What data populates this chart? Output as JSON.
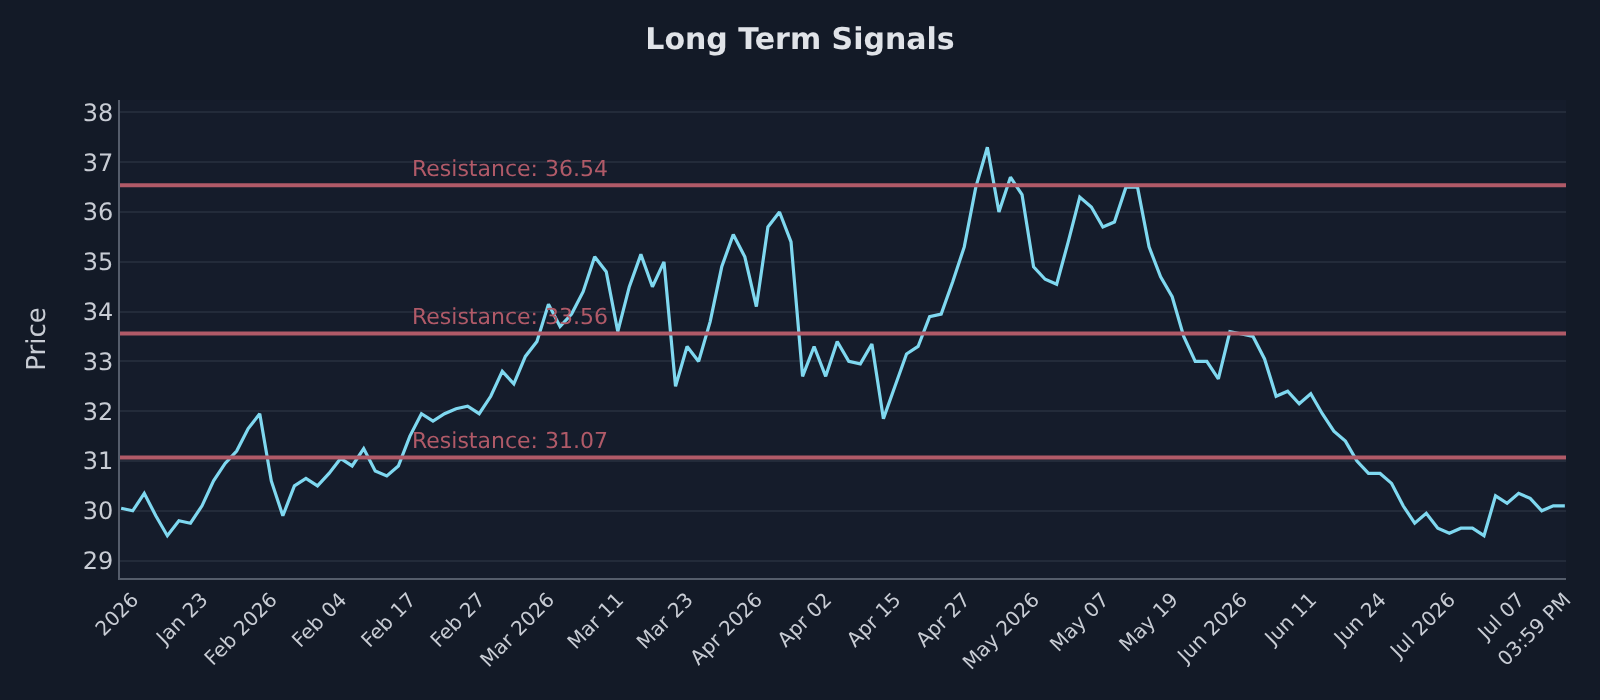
{
  "chart_data": {
    "type": "line",
    "title": "Long Term Signals",
    "ylabel": "Price",
    "categories": [
      null,
      "2026",
      null,
      null,
      null,
      null,
      null,
      "Jan 23",
      null,
      null,
      null,
      null,
      null,
      "Feb 2026",
      null,
      null,
      null,
      null,
      null,
      "Feb 04",
      null,
      null,
      null,
      null,
      null,
      "Feb 17",
      null,
      null,
      null,
      null,
      null,
      "Feb 27",
      null,
      null,
      null,
      null,
      null,
      "Mar 2026",
      null,
      null,
      null,
      null,
      null,
      "Mar 11",
      null,
      null,
      null,
      null,
      null,
      "Mar 23",
      null,
      null,
      null,
      null,
      null,
      "Apr 2026",
      null,
      null,
      null,
      null,
      null,
      "Apr 02",
      null,
      null,
      null,
      null,
      null,
      "Apr 15",
      null,
      null,
      null,
      null,
      null,
      "Apr 27",
      null,
      null,
      null,
      null,
      null,
      "May 2026",
      null,
      null,
      null,
      null,
      null,
      "May 07",
      null,
      null,
      null,
      null,
      null,
      "May 19",
      null,
      null,
      null,
      null,
      null,
      "Jun 2026",
      null,
      null,
      null,
      null,
      null,
      "Jun 11",
      null,
      null,
      null,
      null,
      null,
      "Jun 24",
      null,
      null,
      null,
      null,
      null,
      "Jul 2026",
      null,
      null,
      null,
      null,
      null,
      "Jul 07",
      null,
      null,
      null,
      "03:59 PM"
    ],
    "series": [
      {
        "color": "#7fd8f0",
        "values": [
          30.05,
          30.0,
          30.35,
          29.9,
          29.5,
          29.8,
          29.75,
          30.1,
          30.6,
          30.95,
          31.2,
          31.65,
          31.95,
          30.6,
          29.9,
          30.5,
          30.65,
          30.5,
          30.75,
          31.05,
          30.9,
          31.25,
          30.8,
          30.7,
          30.9,
          31.5,
          31.95,
          31.8,
          31.95,
          32.05,
          32.1,
          31.95,
          32.3,
          32.8,
          32.55,
          33.1,
          33.4,
          34.15,
          33.7,
          33.95,
          34.4,
          35.1,
          34.8,
          33.6,
          34.5,
          35.15,
          34.5,
          35.0,
          32.5,
          33.3,
          33.0,
          33.8,
          34.9,
          35.55,
          35.1,
          34.1,
          35.7,
          36.0,
          35.4,
          32.7,
          33.3,
          32.7,
          33.4,
          33.0,
          32.95,
          33.35,
          31.85,
          32.5,
          33.15,
          33.3,
          33.9,
          33.95,
          34.6,
          35.3,
          36.5,
          37.3,
          36.0,
          36.7,
          36.35,
          34.9,
          34.65,
          34.55,
          35.4,
          36.3,
          36.1,
          35.7,
          35.8,
          36.5,
          36.5,
          35.3,
          34.7,
          34.3,
          33.5,
          33.0,
          33.0,
          32.65,
          33.6,
          33.55,
          33.5,
          33.05,
          32.3,
          32.4,
          32.15,
          32.35,
          31.95,
          31.6,
          31.4,
          31.0,
          30.75,
          30.75,
          30.55,
          30.1,
          29.75,
          29.95,
          29.65,
          29.55,
          29.65,
          29.65,
          29.5,
          30.3,
          30.15,
          30.35,
          30.25,
          30.0,
          30.1,
          30.1
        ]
      }
    ],
    "ylim": [
      28.65,
      38.25
    ],
    "yticks": [
      29,
      30,
      31,
      32,
      33,
      34,
      35,
      36,
      37,
      38
    ],
    "grid": "y",
    "line_style": "solid",
    "ref_lines": [
      {
        "axis": "y",
        "value": 36.54,
        "label": "Resistance: 36.54",
        "color": "#b05a68"
      },
      {
        "axis": "y",
        "value": 33.56,
        "label": "Resistance: 33.56",
        "color": "#b05a68"
      },
      {
        "axis": "y",
        "value": 31.07,
        "label": "Resistance: 31.07",
        "color": "#b05a68"
      }
    ]
  }
}
